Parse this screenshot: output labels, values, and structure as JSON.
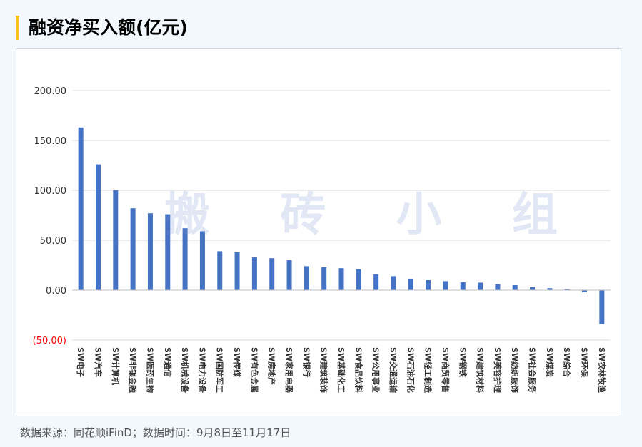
{
  "header": {
    "title": "融资净买入额(亿元)",
    "accent_color": "#f5c518"
  },
  "watermark": "搬 砖 小 组",
  "footer": {
    "source": "数据来源：同花顺iFinD；数据时间：9月8日至11月17日"
  },
  "chart_data": {
    "type": "bar",
    "title": "融资净买入额(亿元)",
    "xlabel": "",
    "ylabel": "",
    "ylim": [
      -50,
      200
    ],
    "yticks": [
      200,
      150,
      100,
      50,
      0,
      -50
    ],
    "ytick_labels": [
      "200.00",
      "150.00",
      "100.00",
      "50.00",
      "0.00",
      "(50.00)"
    ],
    "grid": true,
    "bar_color": "#4472c4",
    "negative_label_color": "#ff0000",
    "categories": [
      "SW电子",
      "SW汽车",
      "SW计算机",
      "SW非银金融",
      "SW医药生物",
      "SW通信",
      "SW机械设备",
      "SW电力设备",
      "SW国防军工",
      "SW传媒",
      "SW有色金属",
      "SW房地产",
      "SW家用电器",
      "SW银行",
      "SW建筑装饰",
      "SW基础化工",
      "SW食品饮料",
      "SW公用事业",
      "SW交通运输",
      "SW石油石化",
      "SW轻工制造",
      "SW商贸零售",
      "SW钢铁",
      "SW建筑材料",
      "SW美容护理",
      "SW纺织服饰",
      "SW社会服务",
      "SW煤炭",
      "SW综合",
      "SW环保",
      "SW农林牧渔"
    ],
    "values": [
      163,
      126,
      100,
      82,
      77,
      76,
      62,
      59,
      39,
      38,
      33,
      32,
      30,
      24,
      23,
      22,
      21,
      16,
      14,
      11,
      10,
      9,
      8,
      7.5,
      6,
      5,
      3,
      2,
      1,
      -2,
      -34
    ]
  }
}
